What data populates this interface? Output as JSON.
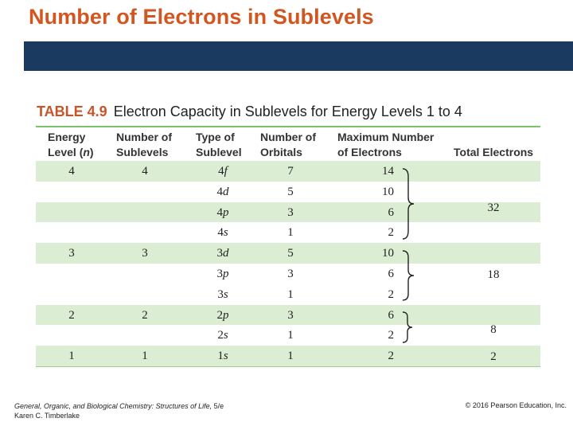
{
  "slide": {
    "title": "Number of Electrons in Sublevels"
  },
  "table": {
    "number": "TABLE 4.9",
    "caption": "Electron Capacity in Sublevels for Energy Levels 1 to 4",
    "headers": {
      "energy_line1": "Energy",
      "energy_line2": "Level (n)",
      "sublevels_line1": "Number of",
      "sublevels_line2": "Sublevels",
      "type_line1": "Type of",
      "type_line2": "Sublevel",
      "orbitals_line1": "Number of",
      "orbitals_line2": "Orbitals",
      "max_line1": "Maximum Number",
      "max_line2": "of Electrons",
      "total": "Total Electrons"
    },
    "rows": [
      {
        "energy": "4",
        "sublevels": "4",
        "type_num": "4",
        "type_letter": "f",
        "orbitals": "7",
        "max": "14"
      },
      {
        "energy": "",
        "sublevels": "",
        "type_num": "4",
        "type_letter": "d",
        "orbitals": "5",
        "max": "10"
      },
      {
        "energy": "",
        "sublevels": "",
        "type_num": "4",
        "type_letter": "p",
        "orbitals": "3",
        "max": "6"
      },
      {
        "energy": "",
        "sublevels": "",
        "type_num": "4",
        "type_letter": "s",
        "orbitals": "1",
        "max": "2"
      },
      {
        "energy": "3",
        "sublevels": "3",
        "type_num": "3",
        "type_letter": "d",
        "orbitals": "5",
        "max": "10"
      },
      {
        "energy": "",
        "sublevels": "",
        "type_num": "3",
        "type_letter": "p",
        "orbitals": "3",
        "max": "6"
      },
      {
        "energy": "",
        "sublevels": "",
        "type_num": "3",
        "type_letter": "s",
        "orbitals": "1",
        "max": "2"
      },
      {
        "energy": "2",
        "sublevels": "2",
        "type_num": "2",
        "type_letter": "p",
        "orbitals": "3",
        "max": "6"
      },
      {
        "energy": "",
        "sublevels": "",
        "type_num": "2",
        "type_letter": "s",
        "orbitals": "1",
        "max": "2"
      },
      {
        "energy": "1",
        "sublevels": "1",
        "type_num": "1",
        "type_letter": "s",
        "orbitals": "1",
        "max": "2"
      }
    ],
    "totals": {
      "level4": "32",
      "level3": "18",
      "level2": "8",
      "level1": "2"
    }
  },
  "footer": {
    "book": "General, Organic, and Biological Chemistry: Structures of Life,",
    "edition": " 5/e",
    "author": "Karen C. Timberlake",
    "copyright": "© 2016 Pearson Education, Inc."
  }
}
